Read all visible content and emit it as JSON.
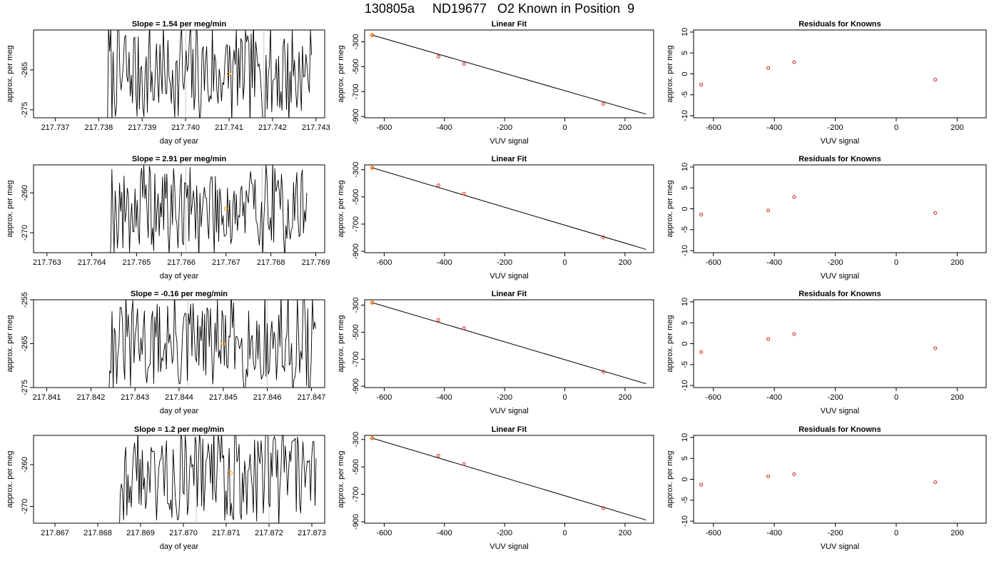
{
  "title": "130805a     ND19677   O2 Known in Position  9",
  "colors": {
    "line": "#000000",
    "point": "#cc2222",
    "highlight": "#ff9900",
    "marker": "#c8c8c8"
  },
  "chart_data": [
    {
      "type": "line",
      "row": 0,
      "title": "Slope =  1.54  per meg/min",
      "xlabel": "day of year",
      "ylabel": "approx. per meg",
      "xlim": [
        217.7365,
        217.7432
      ],
      "ylim": [
        -277,
        -255
      ],
      "xticks": [
        217.737,
        217.738,
        217.739,
        217.74,
        217.741,
        217.742,
        217.743
      ],
      "xticklabels": [
        "217.737",
        "217.738",
        "217.739",
        "217.740",
        "217.741",
        "217.742",
        "217.743"
      ],
      "yticks": [
        -275,
        -265
      ],
      "yticklabels": [
        "-275",
        "-265"
      ],
      "x_start": 217.7382,
      "x_end": 217.7429,
      "n_points": 180,
      "y_center": -266,
      "y_amp": 12,
      "seed": 7,
      "markers": [
        217.74,
        217.7418
      ],
      "highlight": {
        "x": 217.741,
        "y": -266
      }
    },
    {
      "type": "line",
      "row": 1,
      "title": "Slope =  2.91  per meg/min",
      "xlabel": "day of year",
      "ylabel": "approx. per meg",
      "xlim": [
        217.7627,
        217.7692
      ],
      "ylim": [
        -275,
        -253
      ],
      "xticks": [
        217.763,
        217.764,
        217.765,
        217.766,
        217.767,
        217.768,
        217.769
      ],
      "xticklabels": [
        "217.763",
        "217.764",
        "217.765",
        "217.766",
        "217.767",
        "217.768",
        "217.769"
      ],
      "yticks": [
        -270,
        -260
      ],
      "yticklabels": [
        "-270",
        "-260"
      ],
      "x_start": 217.7644,
      "x_end": 217.7688,
      "n_points": 180,
      "y_center": -264,
      "y_amp": 11,
      "seed": 19,
      "markers": [
        217.7661,
        217.7678
      ],
      "highlight": {
        "x": 217.767,
        "y": -264
      }
    },
    {
      "type": "line",
      "row": 2,
      "title": "Slope =  -0.16  per meg/min",
      "xlabel": "day of year",
      "ylabel": "approx. per meg",
      "xlim": [
        217.8407,
        217.8473
      ],
      "ylim": [
        -275,
        -255
      ],
      "xticks": [
        217.841,
        217.842,
        217.843,
        217.844,
        217.845,
        217.846,
        217.847
      ],
      "xticklabels": [
        "217.841",
        "217.842",
        "217.843",
        "217.844",
        "217.845",
        "217.846",
        "217.847"
      ],
      "yticks": [
        -275,
        -265,
        -255
      ],
      "yticklabels": [
        "-275",
        "-265",
        "-255"
      ],
      "x_start": 217.8424,
      "x_end": 217.8471,
      "n_points": 180,
      "y_center": -265,
      "y_amp": 10,
      "seed": 31,
      "markers": [
        217.8442,
        217.846
      ],
      "highlight": {
        "x": 217.845,
        "y": -265
      }
    },
    {
      "type": "line",
      "row": 3,
      "title": "Slope =  1.2  per meg/min",
      "xlabel": "day of year",
      "ylabel": "approx. per meg",
      "xlim": [
        217.8665,
        217.8733
      ],
      "ylim": [
        -274,
        -253
      ],
      "xticks": [
        217.867,
        217.868,
        217.869,
        217.87,
        217.871,
        217.872,
        217.873
      ],
      "xticklabels": [
        "217.867",
        "217.868",
        "217.869",
        "217.870",
        "217.871",
        "217.872",
        "217.873"
      ],
      "yticks": [
        -270,
        -260
      ],
      "yticklabels": [
        "-270",
        "-260"
      ],
      "x_start": 217.8685,
      "x_end": 217.8731,
      "n_points": 180,
      "y_center": -262,
      "y_amp": 11,
      "seed": 43,
      "markers": [
        217.8703,
        217.872
      ],
      "highlight": {
        "x": 217.8711,
        "y": -262
      }
    },
    {
      "type": "scatter",
      "row": 0,
      "title": "Linear Fit",
      "xlabel": "VUV signal",
      "ylabel": "approx. per meg",
      "xlim": [
        -665,
        295
      ],
      "ylim": [
        -910,
        -205
      ],
      "xticks": [
        -600,
        -400,
        -200,
        0,
        200
      ],
      "xticklabels": [
        "-600",
        "-400",
        "-200",
        "0",
        "200"
      ],
      "yticks": [
        -900,
        -700,
        -500,
        -300
      ],
      "yticklabels": [
        "-900",
        "-700",
        "-500",
        "-300"
      ],
      "x": [
        -640,
        -420,
        -335,
        128
      ],
      "y": [
        -246,
        -419,
        -478,
        -799
      ],
      "highlight": {
        "x": -640,
        "y": -246
      },
      "fit_line": {
        "x": [
          -640,
          270
        ],
        "y": [
          -246,
          -881
        ]
      }
    },
    {
      "type": "scatter",
      "row": 1,
      "title": "Linear Fit",
      "xlabel": "VUV signal",
      "ylabel": "approx. per meg",
      "xlim": [
        -665,
        295
      ],
      "ylim": [
        -910,
        -265
      ],
      "xticks": [
        -600,
        -400,
        -200,
        0,
        200
      ],
      "xticklabels": [
        "-600",
        "-400",
        "-200",
        "0",
        "200"
      ],
      "yticks": [
        -900,
        -700,
        -500,
        -300
      ],
      "yticklabels": [
        "-900",
        "-700",
        "-500",
        "-300"
      ],
      "x": [
        -640,
        -420,
        -335,
        128
      ],
      "y": [
        -286,
        -415,
        -476,
        -797
      ],
      "highlight": {
        "x": -640,
        "y": -286
      },
      "fit_line": {
        "x": [
          -640,
          270
        ],
        "y": [
          -286,
          -886
        ]
      }
    },
    {
      "type": "scatter",
      "row": 2,
      "title": "Linear Fit",
      "xlabel": "VUV signal",
      "ylabel": "approx. per meg",
      "xlim": [
        -665,
        295
      ],
      "ylim": [
        -910,
        -260
      ],
      "xticks": [
        -600,
        -400,
        -200,
        0,
        200
      ],
      "xticklabels": [
        "-600",
        "-400",
        "-200",
        "0",
        "200"
      ],
      "yticks": [
        -900,
        -700,
        -500,
        -300
      ],
      "yticklabels": [
        "-900",
        "-700",
        "-500",
        "-300"
      ],
      "x": [
        -640,
        -420,
        -335,
        128
      ],
      "y": [
        -281,
        -410,
        -471,
        -793
      ],
      "highlight": {
        "x": -640,
        "y": -281
      },
      "fit_line": {
        "x": [
          -640,
          270
        ],
        "y": [
          -281,
          -882
        ]
      }
    },
    {
      "type": "scatter",
      "row": 3,
      "title": "Linear Fit",
      "xlabel": "VUV signal",
      "ylabel": "approx. per meg",
      "xlim": [
        -665,
        295
      ],
      "ylim": [
        -910,
        -270
      ],
      "xticks": [
        -600,
        -400,
        -200,
        0,
        200
      ],
      "xticklabels": [
        "-600",
        "-400",
        "-200",
        "0",
        "200"
      ],
      "yticks": [
        -900,
        -700,
        -500,
        -300
      ],
      "yticklabels": [
        "-900",
        "-700",
        "-500",
        "-300"
      ],
      "x": [
        -640,
        -420,
        -335,
        128
      ],
      "y": [
        -290,
        -418,
        -479,
        -800
      ],
      "highlight": {
        "x": -640,
        "y": -290
      },
      "fit_line": {
        "x": [
          -640,
          270
        ],
        "y": [
          -290,
          -887
        ]
      }
    },
    {
      "type": "scatter",
      "row": 0,
      "title": "Residuals for Knowns",
      "xlabel": "VUV signal",
      "ylabel": "approx. per meg",
      "xlim": [
        -665,
        295
      ],
      "ylim": [
        -10.5,
        10.5
      ],
      "xticks": [
        -600,
        -400,
        -200,
        0,
        200
      ],
      "xticklabels": [
        "-600",
        "-400",
        "-200",
        "0",
        "200"
      ],
      "yticks": [
        -10,
        -5,
        0,
        5,
        10
      ],
      "yticklabels": [
        "-10",
        "-5",
        "0",
        "5",
        "10"
      ],
      "x": [
        -640,
        -420,
        -335,
        128
      ],
      "y": [
        -2.6,
        1.4,
        2.8,
        -1.4
      ]
    },
    {
      "type": "scatter",
      "row": 1,
      "title": "Residuals for Knowns",
      "xlabel": "VUV signal",
      "ylabel": "approx. per meg",
      "xlim": [
        -665,
        295
      ],
      "ylim": [
        -10.5,
        10.5
      ],
      "xticks": [
        -600,
        -400,
        -200,
        0,
        200
      ],
      "xticklabels": [
        "-600",
        "-400",
        "-200",
        "0",
        "200"
      ],
      "yticks": [
        -10,
        -5,
        0,
        5,
        10
      ],
      "yticklabels": [
        "-10",
        "-5",
        "0",
        "5",
        "10"
      ],
      "x": [
        -640,
        -420,
        -335,
        128
      ],
      "y": [
        -1.4,
        -0.4,
        2.8,
        -1.0
      ]
    },
    {
      "type": "scatter",
      "row": 2,
      "title": "Residuals for Knowns",
      "xlabel": "VUV signal",
      "ylabel": "approx. per meg",
      "xlim": [
        -665,
        295
      ],
      "ylim": [
        -10.5,
        10.5
      ],
      "xticks": [
        -600,
        -400,
        -200,
        0,
        200
      ],
      "xticklabels": [
        "-600",
        "-400",
        "-200",
        "0",
        "200"
      ],
      "yticks": [
        -10,
        -5,
        0,
        5,
        10
      ],
      "yticklabels": [
        "-10",
        "-5",
        "0",
        "5",
        "10"
      ],
      "x": [
        -640,
        -420,
        -335,
        128
      ],
      "y": [
        -2.0,
        1.1,
        2.3,
        -1.1
      ]
    },
    {
      "type": "scatter",
      "row": 3,
      "title": "Residuals for Knowns",
      "xlabel": "VUV signal",
      "ylabel": "approx. per meg",
      "xlim": [
        -665,
        295
      ],
      "ylim": [
        -10.5,
        10.5
      ],
      "xticks": [
        -600,
        -400,
        -200,
        0,
        200
      ],
      "xticklabels": [
        "-600",
        "-400",
        "-200",
        "0",
        "200"
      ],
      "yticks": [
        -10,
        -5,
        0,
        5,
        10
      ],
      "yticklabels": [
        "-10",
        "-5",
        "0",
        "5",
        "10"
      ],
      "x": [
        -640,
        -420,
        -335,
        128
      ],
      "y": [
        -1.3,
        0.7,
        1.2,
        -0.7
      ]
    }
  ]
}
